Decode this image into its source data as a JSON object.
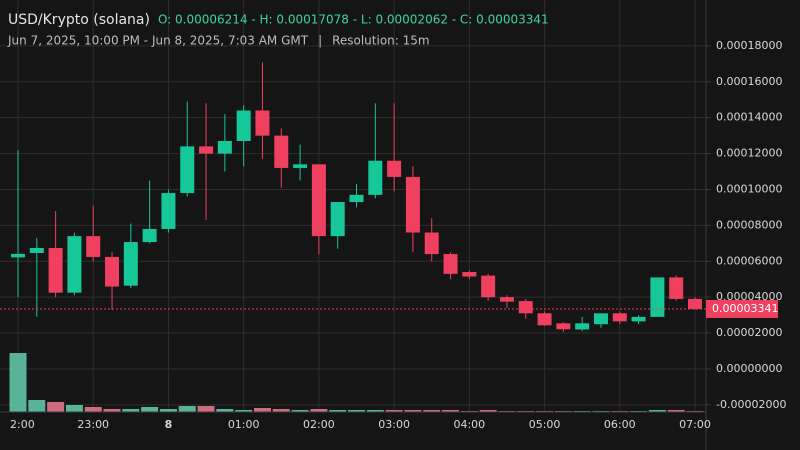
{
  "chart_data": {
    "type": "candlestick",
    "title": "USD/Krypto (solana)",
    "ohlc_text": "O: 0.00006214 - H: 0.00017078 - L: 0.00002062 - C: 0.00003341",
    "subtitle": "Jun 7, 2025, 10:00 PM - Jun 8, 2025, 7:03 AM GMT",
    "resolution": "Resolution: 15m",
    "categories": [
      "2:00",
      null,
      null,
      null,
      "23:00",
      null,
      null,
      null,
      "8",
      null,
      null,
      null,
      "01:00",
      null,
      null,
      null,
      "02:00",
      null,
      null,
      null,
      "03:00",
      null,
      null,
      null,
      "04:00",
      null,
      null,
      null,
      "05:00",
      null,
      null,
      null,
      "06:00",
      null,
      null,
      null,
      "07:00"
    ],
    "open": [
      6.214e-05,
      6.46e-05,
      6.74e-05,
      4.25e-05,
      7.4e-05,
      6.24e-05,
      4.64e-05,
      7.07e-05,
      7.8e-05,
      9.8e-05,
      0.000124,
      0.00012,
      0.000127,
      0.000144,
      0.00013,
      0.000112,
      0.000114,
      7.4e-05,
      9.3e-05,
      9.7e-05,
      0.000116,
      0.000107,
      7.6e-05,
      6.4e-05,
      5.4e-05,
      5.2e-05,
      4e-05,
      3.78e-05,
      3.1e-05,
      2.54e-05,
      2.2e-05,
      2.49e-05,
      3.1e-05,
      2.65e-05,
      2.9e-05,
      5.1e-05,
      3.9e-05
    ],
    "high": [
      0.000122,
      7.3e-05,
      8.8e-05,
      7.6e-05,
      9.1e-05,
      6.5e-05,
      8.1e-05,
      0.000105,
      0.0001,
      0.000149,
      0.000148,
      0.000142,
      0.000147,
      0.00017078,
      0.000134,
      0.000125,
      0.000114,
      9.3e-05,
      0.000103,
      0.000148,
      0.000148,
      0.000113,
      8.4e-05,
      6.5e-05,
      5.5e-05,
      5.3e-05,
      4.1e-05,
      3.9e-05,
      3.2e-05,
      2.6e-05,
      2.9e-05,
      3.1e-05,
      3.2e-05,
      3e-05,
      5.1e-05,
      5.2e-05,
      4e-05
    ],
    "low": [
      4e-05,
      2.9e-05,
      4e-05,
      4.1e-05,
      6e-05,
      3.3e-05,
      4.5e-05,
      7e-05,
      7.6e-05,
      9.6e-05,
      8.3e-05,
      0.00011,
      0.000113,
      0.000117,
      0.000101,
      0.000105,
      6.4e-05,
      6.7e-05,
      9e-05,
      9.5e-05,
      9.9e-05,
      6.5e-05,
      6e-05,
      5e-05,
      5e-05,
      3.8e-05,
      3.4e-05,
      2.8e-05,
      2.4e-05,
      2.062e-05,
      2.1e-05,
      2.3e-05,
      2.5e-05,
      2.5e-05,
      2.9e-05,
      3.8e-05,
      3.3e-05
    ],
    "close": [
      6.41e-05,
      6.74e-05,
      4.25e-05,
      7.4e-05,
      6.24e-05,
      4.59e-05,
      7.07e-05,
      7.8e-05,
      9.8e-05,
      0.000124,
      0.00012,
      0.000127,
      0.000144,
      0.00013,
      0.000112,
      0.000114,
      7.4e-05,
      9.3e-05,
      9.7e-05,
      0.000116,
      0.000107,
      7.6e-05,
      6.4e-05,
      5.3e-05,
      5.15e-05,
      4e-05,
      3.75e-05,
      3.1e-05,
      2.43e-05,
      2.21e-05,
      2.54e-05,
      3.1e-05,
      2.65e-05,
      2.9e-05,
      5.1e-05,
      3.9e-05,
      3.341e-05
    ],
    "volume": [
      59,
      12,
      10,
      7,
      5,
      3,
      3,
      5,
      3,
      6,
      6,
      3,
      2,
      4,
      3,
      2,
      3,
      2,
      2,
      2,
      2,
      2,
      2,
      2,
      1,
      2,
      1,
      1,
      1,
      1,
      1,
      1,
      1,
      1,
      2,
      2,
      1
    ],
    "volume_lim": [
      0,
      60
    ],
    "up_color": "#16c79a",
    "down_color": "#f0405f",
    "up_volume_color": "#5fc4a7",
    "down_volume_color": "#e0758a",
    "ylim": [
      -2.4e-05,
      0.0002
    ],
    "yticks": [
      {
        "value": -2e-05,
        "label": "-0.00002000"
      },
      {
        "value": 0,
        "label": "0.00000000"
      },
      {
        "value": 2e-05,
        "label": "0.00002000"
      },
      {
        "value": 4e-05,
        "label": "0.00004000"
      },
      {
        "value": 6e-05,
        "label": "0.00006000"
      },
      {
        "value": 8e-05,
        "label": "0.00008000"
      },
      {
        "value": 0.0001,
        "label": "0.00010000"
      },
      {
        "value": 0.00012,
        "label": "0.00012000"
      },
      {
        "value": 0.00014,
        "label": "0.00014000"
      },
      {
        "value": 0.00016,
        "label": "0.00016000"
      },
      {
        "value": 0.00018,
        "label": "0.00018000"
      }
    ],
    "last_price": {
      "value": 3.341e-05,
      "label": "0.00003341"
    },
    "grid": true
  }
}
